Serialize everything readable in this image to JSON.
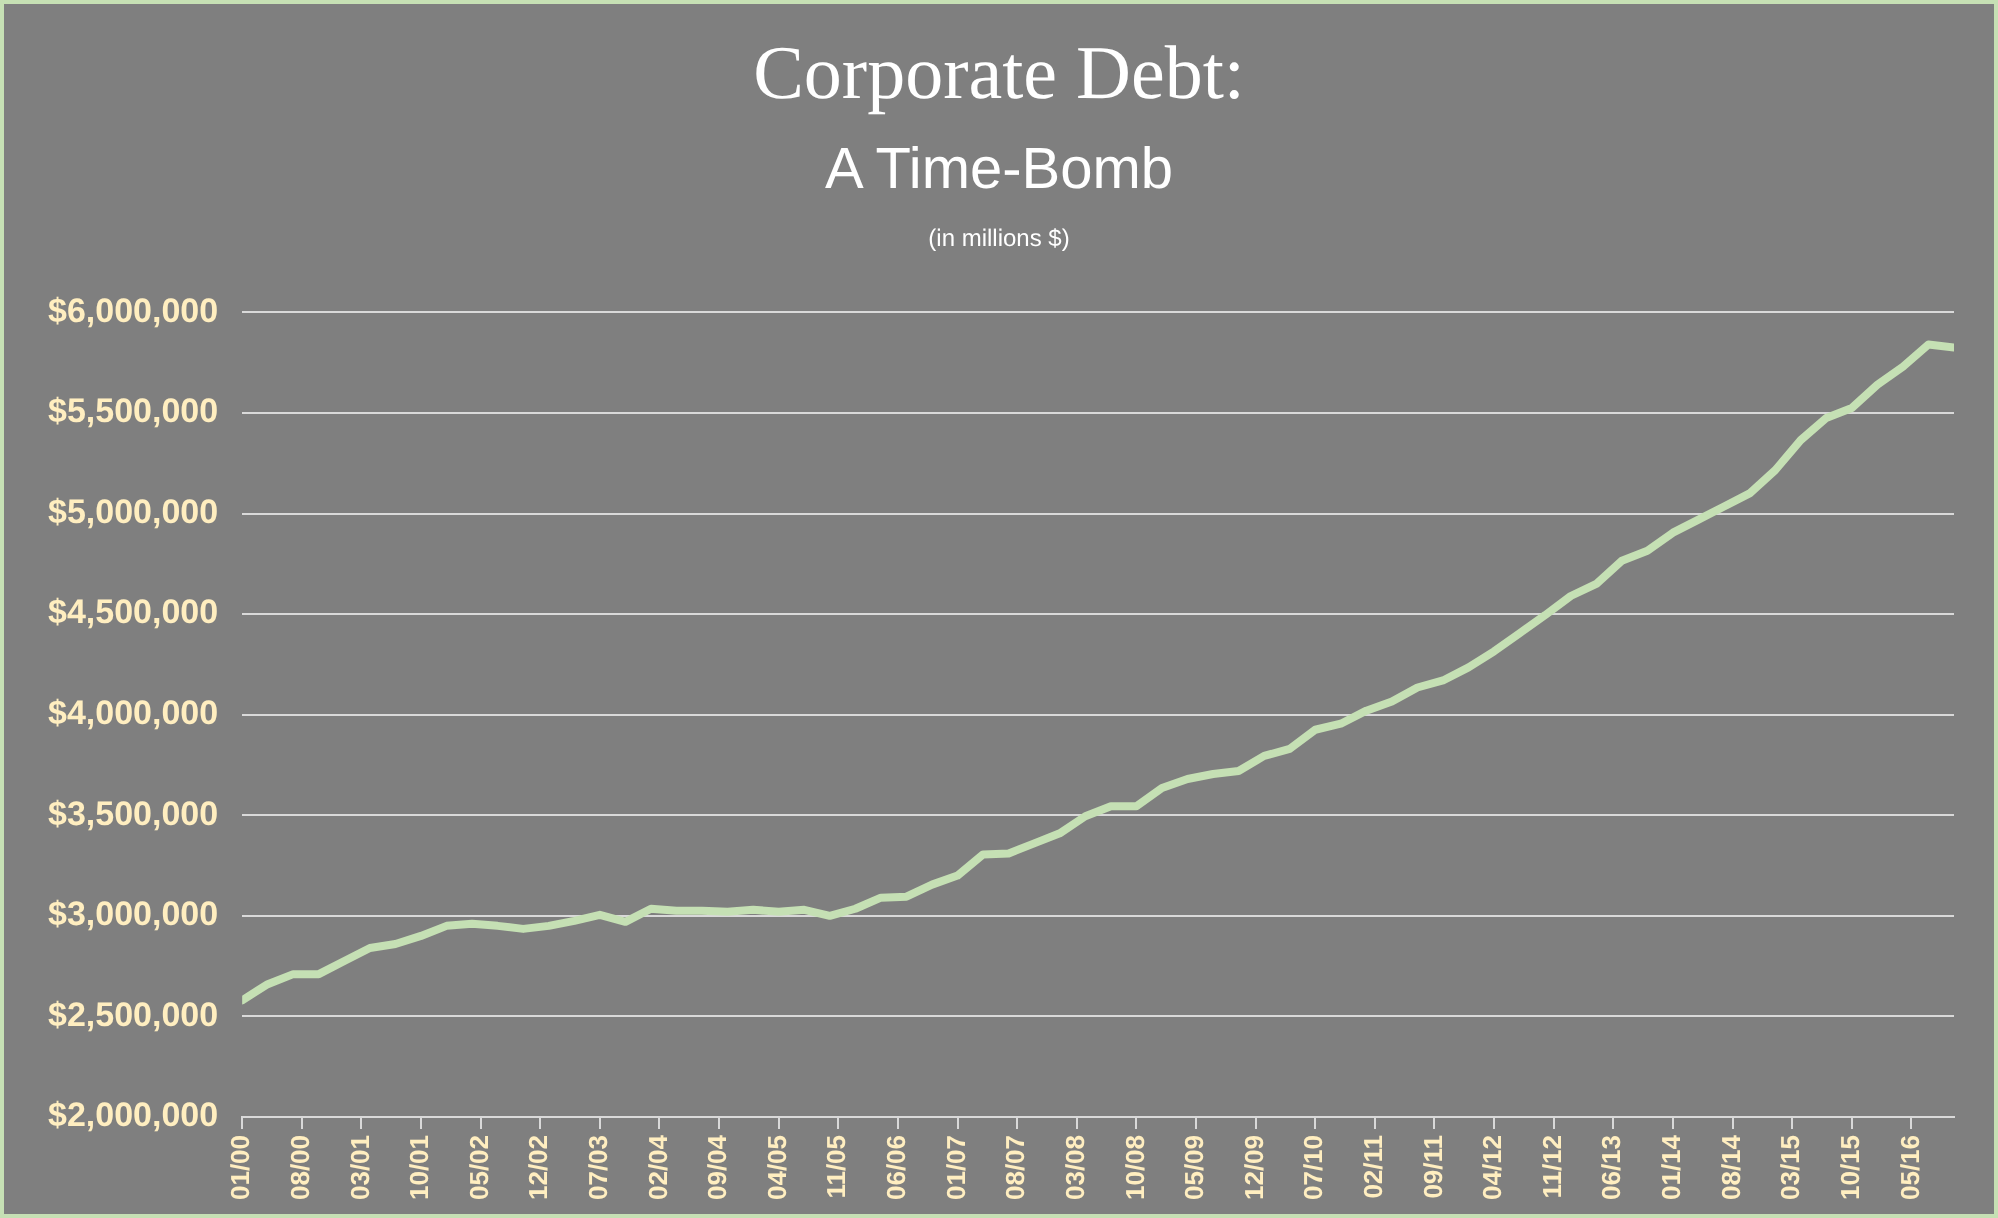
{
  "chart_data": {
    "type": "line",
    "title": "Corporate Debt:\nA Time-Bomb",
    "subtitle": "(in millions  $)",
    "x": [
      "2000-01",
      "2000-04",
      "2000-07",
      "2000-10",
      "2001-01",
      "2001-04",
      "2001-07",
      "2001-10",
      "2002-01",
      "2002-04",
      "2002-07",
      "2002-10",
      "2003-01",
      "2003-04",
      "2003-07",
      "2003-10",
      "2004-01",
      "2004-04",
      "2004-07",
      "2004-10",
      "2005-01",
      "2005-04",
      "2005-07",
      "2005-10",
      "2006-01",
      "2006-04",
      "2006-07",
      "2006-10",
      "2007-01",
      "2007-04",
      "2007-07",
      "2007-10",
      "2008-01",
      "2008-04",
      "2008-07",
      "2008-10",
      "2009-01",
      "2009-04",
      "2009-07",
      "2009-10",
      "2010-01",
      "2010-04",
      "2010-07",
      "2010-10",
      "2011-01",
      "2011-04",
      "2011-07",
      "2011-10",
      "2012-01",
      "2012-04",
      "2012-07",
      "2012-10",
      "2013-01",
      "2013-04",
      "2013-07",
      "2013-10",
      "2014-01",
      "2014-04",
      "2014-07",
      "2014-10",
      "2015-01",
      "2015-04",
      "2015-07",
      "2015-10",
      "2016-01",
      "2016-04",
      "2016-07",
      "2016-10"
    ],
    "series": [
      {
        "color": "#c5e0b4",
        "values": [
          2580000,
          2660000,
          2710000,
          2710000,
          2775000,
          2840000,
          2860000,
          2900000,
          2950000,
          2960000,
          2950000,
          2935000,
          2950000,
          2975000,
          3005000,
          2970000,
          3035000,
          3025000,
          3025000,
          3020000,
          3030000,
          3020000,
          3030000,
          3000000,
          3035000,
          3090000,
          3095000,
          3155000,
          3200000,
          3305000,
          3310000,
          3360000,
          3410000,
          3495000,
          3545000,
          3545000,
          3635000,
          3680000,
          3705000,
          3720000,
          3795000,
          3830000,
          3925000,
          3955000,
          4020000,
          4065000,
          4135000,
          4170000,
          4235000,
          4315000,
          4405000,
          4495000,
          4590000,
          4650000,
          4765000,
          4815000,
          4905000,
          4970000,
          5035000,
          5100000,
          5215000,
          5365000,
          5475000,
          5525000,
          5640000,
          5730000,
          5840000,
          5825000
        ]
      }
    ],
    "xlim": [
      "2000-01",
      "2016-10"
    ],
    "xticks": [
      {
        "value": "2000-01",
        "label": "01/00"
      },
      {
        "value": "2000-08",
        "label": "08/00"
      },
      {
        "value": "2001-03",
        "label": "03/01"
      },
      {
        "value": "2001-10",
        "label": "10/01"
      },
      {
        "value": "2002-05",
        "label": "05/02"
      },
      {
        "value": "2002-12",
        "label": "12/02"
      },
      {
        "value": "2003-07",
        "label": "07/03"
      },
      {
        "value": "2004-02",
        "label": "02/04"
      },
      {
        "value": "2004-09",
        "label": "09/04"
      },
      {
        "value": "2005-04",
        "label": "04/05"
      },
      {
        "value": "2005-11",
        "label": "11/05"
      },
      {
        "value": "2006-06",
        "label": "06/06"
      },
      {
        "value": "2007-01",
        "label": "01/07"
      },
      {
        "value": "2007-08",
        "label": "08/07"
      },
      {
        "value": "2008-03",
        "label": "03/08"
      },
      {
        "value": "2008-10",
        "label": "10/08"
      },
      {
        "value": "2009-05",
        "label": "05/09"
      },
      {
        "value": "2009-12",
        "label": "12/09"
      },
      {
        "value": "2010-07",
        "label": "07/10"
      },
      {
        "value": "2011-02",
        "label": "02/11"
      },
      {
        "value": "2011-09",
        "label": "09/11"
      },
      {
        "value": "2012-04",
        "label": "04/12"
      },
      {
        "value": "2012-11",
        "label": "11/12"
      },
      {
        "value": "2013-06",
        "label": "06/13"
      },
      {
        "value": "2014-01",
        "label": "01/14"
      },
      {
        "value": "2014-08",
        "label": "08/14"
      },
      {
        "value": "2015-03",
        "label": "03/15"
      },
      {
        "value": "2015-10",
        "label": "10/15"
      },
      {
        "value": "2016-05",
        "label": "05/16"
      }
    ],
    "ylim": [
      2000000,
      6000000
    ],
    "yticks": [
      {
        "value": 2000000,
        "label": "$2,000,000"
      },
      {
        "value": 2500000,
        "label": "$2,500,000"
      },
      {
        "value": 3000000,
        "label": "$3,000,000"
      },
      {
        "value": 3500000,
        "label": "$3,500,000"
      },
      {
        "value": 4000000,
        "label": "$4,000,000"
      },
      {
        "value": 4500000,
        "label": "$4,500,000"
      },
      {
        "value": 5000000,
        "label": "$5,000,000"
      },
      {
        "value": 5500000,
        "label": "$5,500,000"
      },
      {
        "value": 6000000,
        "label": "$6,000,000"
      }
    ],
    "grid": "y",
    "legend": false,
    "marker": "none",
    "line_style": "solid"
  }
}
